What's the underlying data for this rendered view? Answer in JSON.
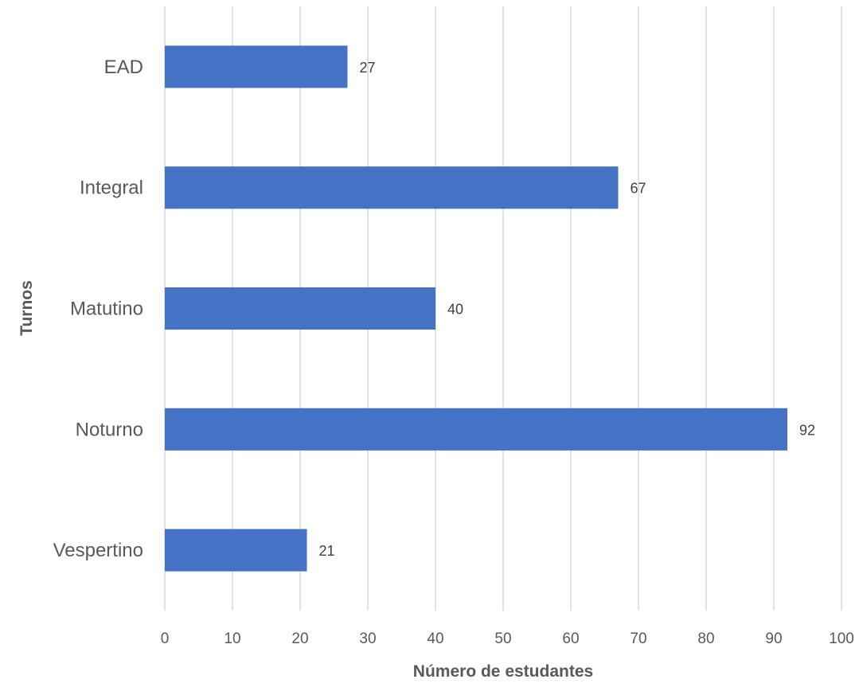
{
  "chart_data": {
    "type": "bar",
    "orientation": "horizontal",
    "categories": [
      "EAD",
      "Integral",
      "Matutino",
      "Noturno",
      "Vespertino"
    ],
    "values": [
      27,
      67,
      40,
      92,
      21
    ],
    "xlabel": "Número de estudantes",
    "ylabel": "Turnos",
    "xlim": [
      0,
      100
    ],
    "xticks": [
      "0",
      "10",
      "20",
      "30",
      "40",
      "50",
      "60",
      "70",
      "80",
      "90",
      "100"
    ],
    "grid": "vertical",
    "legend": "none",
    "bar_color": "#4472C4",
    "grid_color": "#D9D9D9"
  }
}
